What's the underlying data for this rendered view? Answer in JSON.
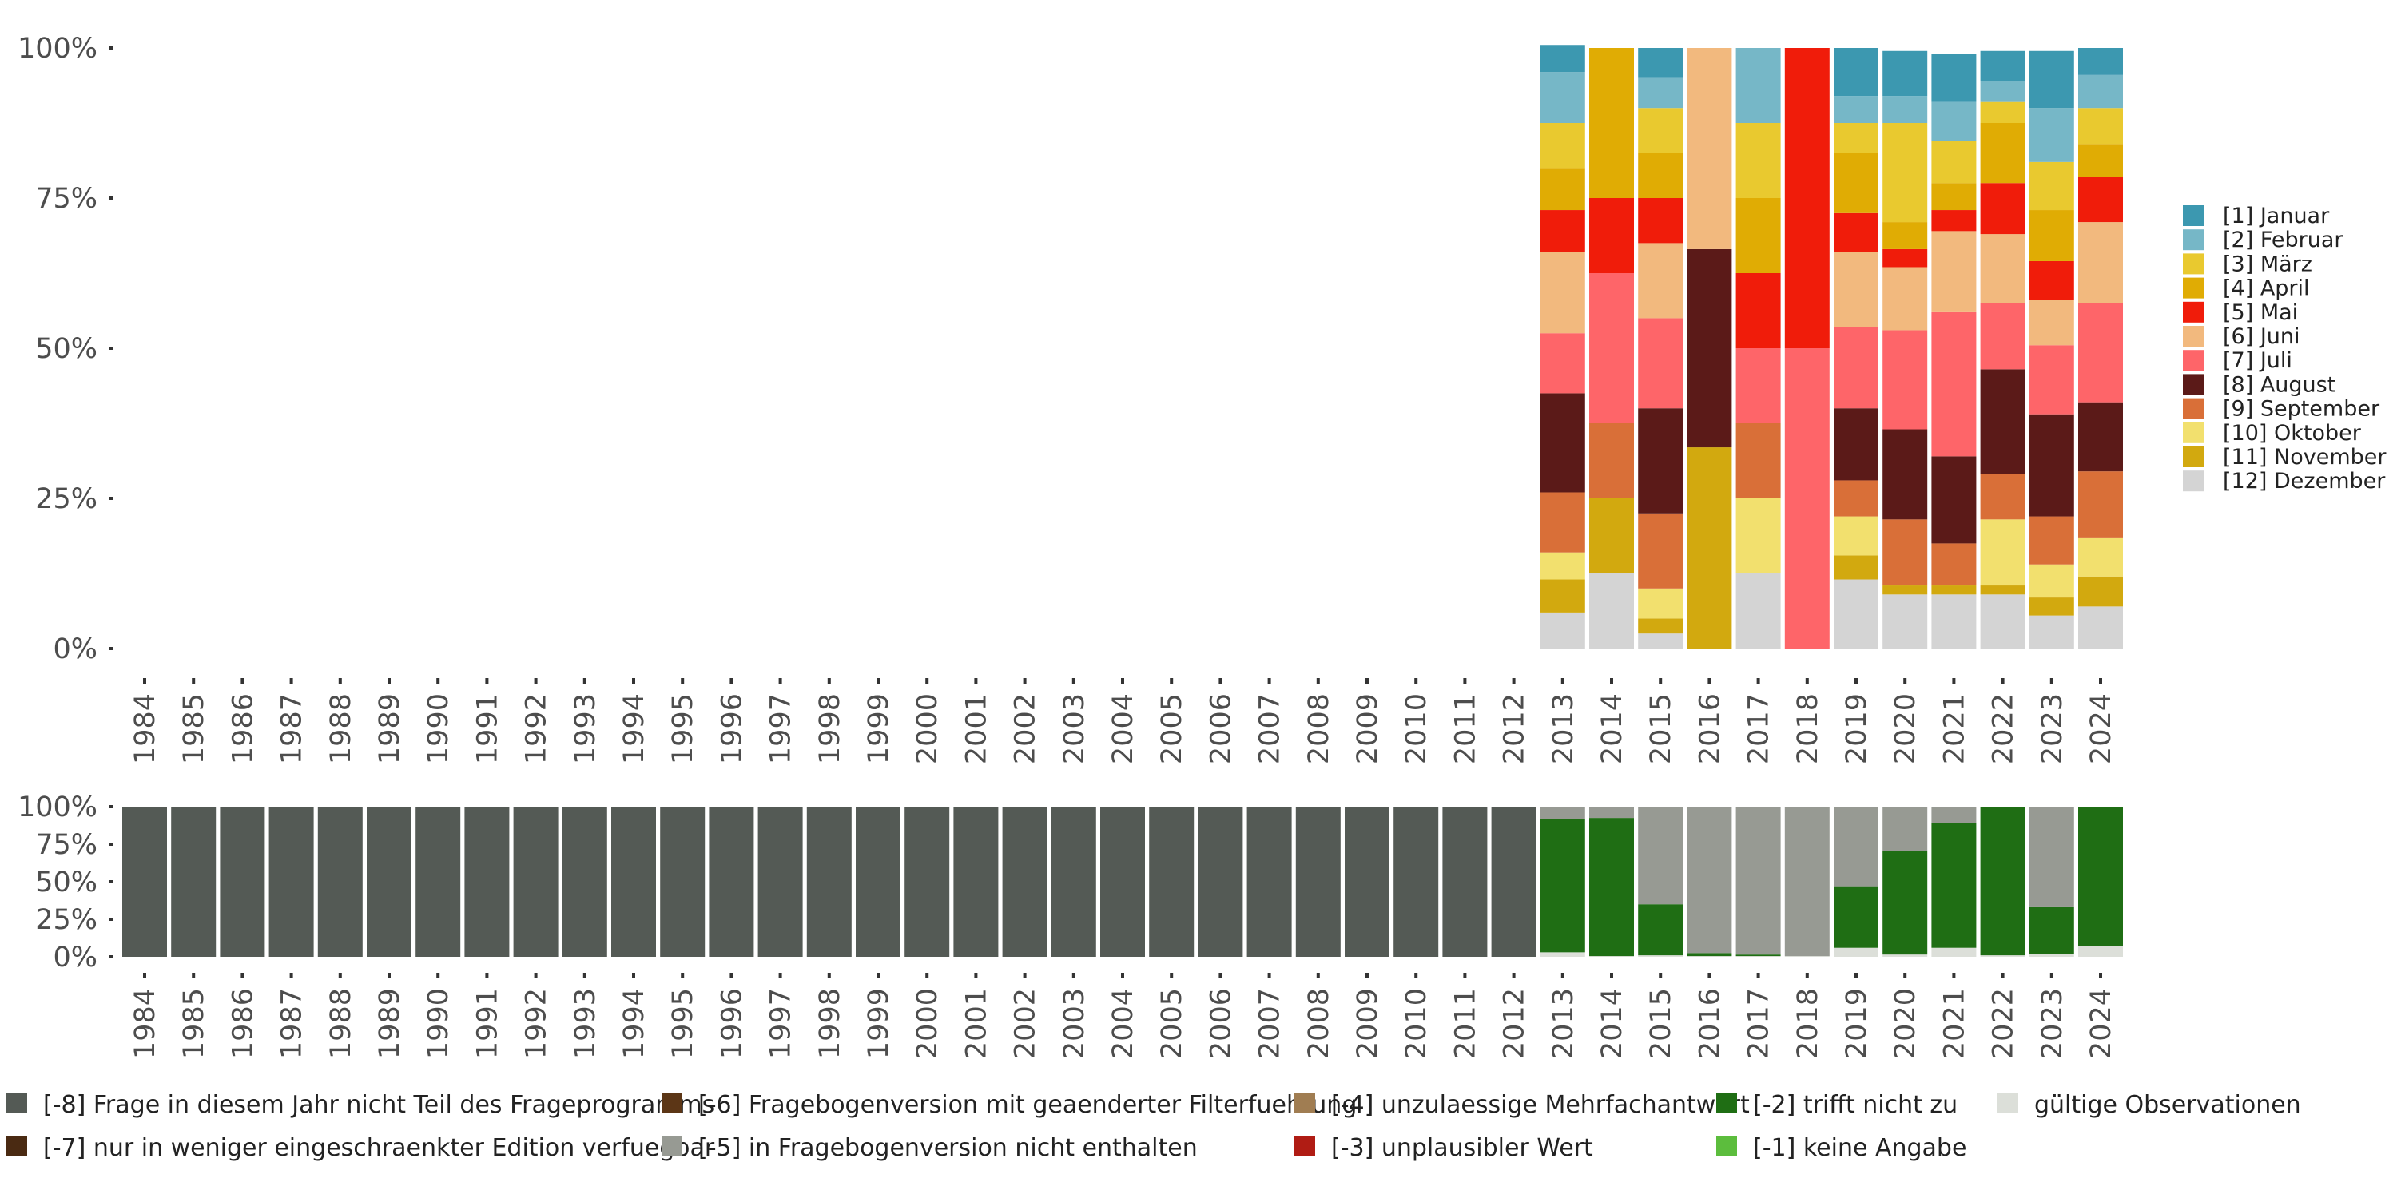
{
  "chart_data": [
    {
      "type": "bar",
      "stacked": true,
      "normalized": true,
      "categories": [
        "1984",
        "1985",
        "1986",
        "1987",
        "1988",
        "1989",
        "1990",
        "1991",
        "1992",
        "1993",
        "1994",
        "1995",
        "1996",
        "1997",
        "1998",
        "1999",
        "2000",
        "2001",
        "2002",
        "2003",
        "2004",
        "2005",
        "2006",
        "2007",
        "2008",
        "2009",
        "2010",
        "2011",
        "2012",
        "2013",
        "2014",
        "2015",
        "2016",
        "2017",
        "2018",
        "2019",
        "2020",
        "2021",
        "2022",
        "2023",
        "2024"
      ],
      "y_ticks": [
        "0%",
        "25%",
        "50%",
        "75%",
        "100%"
      ],
      "ylim": [
        0,
        100
      ],
      "legend_position": "right",
      "series": [
        {
          "name": "[12] Dezember",
          "color": "#d4d4d4",
          "values": [
            null,
            null,
            null,
            null,
            null,
            null,
            null,
            null,
            null,
            null,
            null,
            null,
            null,
            null,
            null,
            null,
            null,
            null,
            null,
            null,
            null,
            null,
            null,
            null,
            null,
            null,
            null,
            null,
            null,
            6,
            12.5,
            2.5,
            0,
            12.5,
            0,
            11.5,
            9,
            9,
            9,
            5.5,
            7
          ]
        },
        {
          "name": "[11] November",
          "color": "#d2a90f",
          "values": [
            null,
            null,
            null,
            null,
            null,
            null,
            null,
            null,
            null,
            null,
            null,
            null,
            null,
            null,
            null,
            null,
            null,
            null,
            null,
            null,
            null,
            null,
            null,
            null,
            null,
            null,
            null,
            null,
            null,
            5.5,
            12.5,
            2.5,
            33.5,
            0,
            0,
            4,
            1.5,
            1.5,
            1.5,
            3,
            5
          ]
        },
        {
          "name": "[10] Oktober",
          "color": "#f2e06e",
          "values": [
            null,
            null,
            null,
            null,
            null,
            null,
            null,
            null,
            null,
            null,
            null,
            null,
            null,
            null,
            null,
            null,
            null,
            null,
            null,
            null,
            null,
            null,
            null,
            null,
            null,
            null,
            null,
            null,
            null,
            4.5,
            0,
            5,
            0,
            12.5,
            0,
            6.5,
            0,
            0,
            11,
            5.5,
            6.5
          ]
        },
        {
          "name": "[9] September",
          "color": "#d96f38",
          "values": [
            null,
            null,
            null,
            null,
            null,
            null,
            null,
            null,
            null,
            null,
            null,
            null,
            null,
            null,
            null,
            null,
            null,
            null,
            null,
            null,
            null,
            null,
            null,
            null,
            null,
            null,
            null,
            null,
            null,
            10,
            12.5,
            12.5,
            0,
            12.5,
            0,
            6,
            11,
            7,
            7.5,
            8,
            11
          ]
        },
        {
          "name": "[8] August",
          "color": "#5b1a18",
          "values": [
            null,
            null,
            null,
            null,
            null,
            null,
            null,
            null,
            null,
            null,
            null,
            null,
            null,
            null,
            null,
            null,
            null,
            null,
            null,
            null,
            null,
            null,
            null,
            null,
            null,
            null,
            null,
            null,
            null,
            16.5,
            0,
            17.5,
            33,
            0,
            0,
            12,
            15,
            14.5,
            17.5,
            17,
            11.5
          ]
        },
        {
          "name": "[7] Juli",
          "color": "#fe6569",
          "values": [
            null,
            null,
            null,
            null,
            null,
            null,
            null,
            null,
            null,
            null,
            null,
            null,
            null,
            null,
            null,
            null,
            null,
            null,
            null,
            null,
            null,
            null,
            null,
            null,
            null,
            null,
            null,
            null,
            null,
            10,
            25,
            15,
            0,
            12.5,
            50,
            13.5,
            16.5,
            24,
            11,
            11.5,
            16.5
          ]
        },
        {
          "name": "[6] Juni",
          "color": "#f2b97e",
          "values": [
            null,
            null,
            null,
            null,
            null,
            null,
            null,
            null,
            null,
            null,
            null,
            null,
            null,
            null,
            null,
            null,
            null,
            null,
            null,
            null,
            null,
            null,
            null,
            null,
            null,
            null,
            null,
            null,
            null,
            13.5,
            0,
            12.5,
            33.5,
            0,
            0,
            12.5,
            10.5,
            13.5,
            11.5,
            7.5,
            13.5
          ]
        },
        {
          "name": "[5] Mai",
          "color": "#f01c0a",
          "values": [
            null,
            null,
            null,
            null,
            null,
            null,
            null,
            null,
            null,
            null,
            null,
            null,
            null,
            null,
            null,
            null,
            null,
            null,
            null,
            null,
            null,
            null,
            null,
            null,
            null,
            null,
            null,
            null,
            null,
            7,
            12.5,
            7.5,
            0,
            12.5,
            50,
            6.5,
            3,
            3.5,
            8.5,
            6.5,
            7.5
          ]
        },
        {
          "name": "[4] April",
          "color": "#e0ac04",
          "values": [
            null,
            null,
            null,
            null,
            null,
            null,
            null,
            null,
            null,
            null,
            null,
            null,
            null,
            null,
            null,
            null,
            null,
            null,
            null,
            null,
            null,
            null,
            null,
            null,
            null,
            null,
            null,
            null,
            null,
            7,
            25,
            7.5,
            0,
            12.5,
            0,
            10,
            4.5,
            4.5,
            10,
            8.5,
            5.5
          ]
        },
        {
          "name": "[3] März",
          "color": "#e9c92f",
          "values": [
            null,
            null,
            null,
            null,
            null,
            null,
            null,
            null,
            null,
            null,
            null,
            null,
            null,
            null,
            null,
            null,
            null,
            null,
            null,
            null,
            null,
            null,
            null,
            null,
            null,
            null,
            null,
            null,
            null,
            7.5,
            0,
            7.5,
            0,
            12.5,
            0,
            5,
            16.5,
            7,
            3.5,
            8,
            6
          ]
        },
        {
          "name": "[2] Februar",
          "color": "#76b7c7",
          "values": [
            null,
            null,
            null,
            null,
            null,
            null,
            null,
            null,
            null,
            null,
            null,
            null,
            null,
            null,
            null,
            null,
            null,
            null,
            null,
            null,
            null,
            null,
            null,
            null,
            null,
            null,
            null,
            null,
            null,
            8.5,
            0,
            5,
            0,
            12.5,
            0,
            4.5,
            4.5,
            6.5,
            3.5,
            9,
            5.5
          ]
        },
        {
          "name": "[1] Januar",
          "color": "#3c98b0",
          "values": [
            null,
            null,
            null,
            null,
            null,
            null,
            null,
            null,
            null,
            null,
            null,
            null,
            null,
            null,
            null,
            null,
            null,
            null,
            null,
            null,
            null,
            null,
            null,
            null,
            null,
            null,
            null,
            null,
            null,
            4.5,
            0,
            5,
            0,
            0,
            0,
            8,
            7.5,
            8,
            5,
            9.5,
            4.5
          ]
        }
      ]
    },
    {
      "type": "bar",
      "stacked": true,
      "normalized": true,
      "categories": [
        "1984",
        "1985",
        "1986",
        "1987",
        "1988",
        "1989",
        "1990",
        "1991",
        "1992",
        "1993",
        "1994",
        "1995",
        "1996",
        "1997",
        "1998",
        "1999",
        "2000",
        "2001",
        "2002",
        "2003",
        "2004",
        "2005",
        "2006",
        "2007",
        "2008",
        "2009",
        "2010",
        "2011",
        "2012",
        "2013",
        "2014",
        "2015",
        "2016",
        "2017",
        "2018",
        "2019",
        "2020",
        "2021",
        "2022",
        "2023",
        "2024"
      ],
      "y_ticks": [
        "0%",
        "25%",
        "50%",
        "75%",
        "100%"
      ],
      "ylim": [
        0,
        100
      ],
      "legend_position": "bottom",
      "series": [
        {
          "name": "gültige Observationen",
          "color": "#dcdfd9",
          "values": [
            0,
            0,
            0,
            0,
            0,
            0,
            0,
            0,
            0,
            0,
            0,
            0,
            0,
            0,
            0,
            0,
            0,
            0,
            0,
            0,
            0,
            0,
            0,
            0,
            0,
            0,
            0,
            0,
            0,
            3,
            0.5,
            1,
            0.5,
            0.5,
            0.5,
            6,
            1.5,
            6,
            1,
            2,
            7
          ]
        },
        {
          "name": "[-2] trifft nicht zu",
          "color": "#1f6e14",
          "values": [
            0,
            0,
            0,
            0,
            0,
            0,
            0,
            0,
            0,
            0,
            0,
            0,
            0,
            0,
            0,
            0,
            0,
            0,
            0,
            0,
            0,
            0,
            0,
            0,
            0,
            0,
            0,
            0,
            0,
            89,
            92,
            34,
            2,
            1,
            0,
            41,
            69,
            83,
            99,
            31,
            93
          ]
        },
        {
          "name": "[-5] in Fragebogenversion nicht enthalten",
          "color": "#979a93",
          "values": [
            0,
            0,
            0,
            0,
            0,
            0,
            0,
            0,
            0,
            0,
            0,
            0,
            0,
            0,
            0,
            0,
            0,
            0,
            0,
            0,
            0,
            0,
            0,
            0,
            0,
            0,
            0,
            0,
            0,
            8,
            7.5,
            65,
            97.5,
            98.5,
            99.5,
            53,
            29.5,
            11,
            0,
            67,
            0
          ]
        },
        {
          "name": "[-8] Frage in diesem Jahr nicht Teil des Frageprogramms",
          "color": "#545a55",
          "values": [
            100,
            100,
            100,
            100,
            100,
            100,
            100,
            100,
            100,
            100,
            100,
            100,
            100,
            100,
            100,
            100,
            100,
            100,
            100,
            100,
            100,
            100,
            100,
            100,
            100,
            100,
            100,
            100,
            100,
            0,
            0,
            0,
            0,
            0,
            0,
            0,
            0,
            0,
            0,
            0,
            0
          ]
        }
      ],
      "legend": [
        {
          "name": "[-8] Frage in diesem Jahr nicht Teil des Frageprogramms",
          "color": "#545a55"
        },
        {
          "name": "[-7] nur in weniger eingeschraenkter Edition verfuegbar",
          "color": "#4a2a12"
        },
        {
          "name": "[-6] Fragebogenversion mit geaenderter Filterfuehrung",
          "color": "#5c3616"
        },
        {
          "name": "[-5] in Fragebogenversion nicht enthalten",
          "color": "#979a93"
        },
        {
          "name": "[-4] unzulaessige Mehrfachantwort",
          "color": "#a07d52"
        },
        {
          "name": "[-3] unplausibler Wert",
          "color": "#b01c14"
        },
        {
          "name": "[-2] trifft nicht zu",
          "color": "#1f6e14"
        },
        {
          "name": "[-1] keine Angabe",
          "color": "#5cbd3d"
        },
        {
          "name": "gültige Observationen",
          "color": "#dcdfd9"
        }
      ]
    }
  ]
}
